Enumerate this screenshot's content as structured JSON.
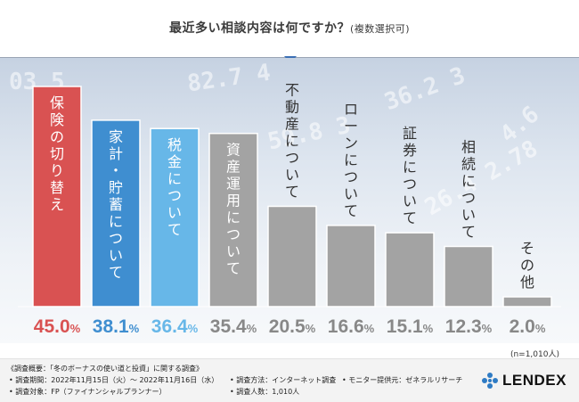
{
  "title": {
    "main": "最近多い相談内容は何ですか？",
    "sub": "(複数選択可)"
  },
  "chart_data": {
    "type": "bar",
    "title": "最近多い相談内容は何ですか？(複数選択可)",
    "categories": [
      "保険の切り替え",
      "家計・貯蓄について",
      "税金について",
      "資産運用について",
      "不動産について",
      "ローンについて",
      "証券について",
      "相続について",
      "その他"
    ],
    "values": [
      45.0,
      38.1,
      36.4,
      35.4,
      20.5,
      16.6,
      15.1,
      12.3,
      2.0
    ],
    "labels": [
      {
        "num": "45.0",
        "unit": "%"
      },
      {
        "num": "38.1",
        "unit": "%"
      },
      {
        "num": "36.4",
        "unit": "%"
      },
      {
        "num": "35.4",
        "unit": "%"
      },
      {
        "num": "20.5",
        "unit": "%"
      },
      {
        "num": "16.6",
        "unit": "%"
      },
      {
        "num": "15.1",
        "unit": "%"
      },
      {
        "num": "12.3",
        "unit": "%"
      },
      {
        "num": "2.0",
        "unit": "%"
      }
    ],
    "colors": [
      "#d95252",
      "#3f8ed0",
      "#67b7e8",
      "#a3a3a3",
      "#a3a3a3",
      "#a3a3a3",
      "#a3a3a3",
      "#a3a3a3",
      "#a3a3a3"
    ],
    "label_colors": [
      "#d95252",
      "#3f8ed0",
      "#67b7e8",
      "#888888",
      "#888888",
      "#888888",
      "#888888",
      "#888888",
      "#888888"
    ],
    "ylim": [
      0,
      45
    ],
    "xlabel": "",
    "ylabel": "",
    "n_note": "(n=1,010人)"
  },
  "footer": {
    "overview": "《調査概要：「冬のボーナスの使い道と投資」に関する調査》",
    "period": "• 調査期間：2022年11月15日（火）～ 2022年11月16日（水）",
    "target": "• 調査対象：FP（ファイナンシャルプランナー）",
    "method": "• 調査方法：インターネット調査",
    "provider": "• モニター提供元：ゼネラルリサーチ",
    "count": "• 調査人数：1,010人",
    "logo": "LENDEX"
  },
  "decor_numbers": [
    "03  5",
    "82.7  4",
    "36.2 3",
    "59.8  3",
    "4.6",
    "26.4 2.78"
  ]
}
